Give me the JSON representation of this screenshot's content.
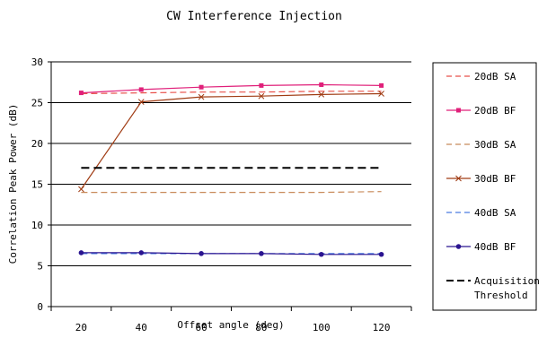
{
  "chart_data": {
    "type": "line",
    "title": "CW Interference Injection",
    "xlabel": "Offset angle (deg)",
    "ylabel": "Correlation Peak Power (dB)",
    "x": [
      20,
      40,
      60,
      80,
      100,
      120
    ],
    "x_ticks": [
      "20",
      "40",
      "60",
      "80",
      "100",
      "120"
    ],
    "ylim": [
      0,
      30
    ],
    "y_ticks": [
      "0",
      "5",
      "10",
      "15",
      "20",
      "25",
      "30"
    ],
    "grid": "horizontal",
    "legend_position": "right",
    "series": [
      {
        "name": "20dB SA",
        "color": "#e8504a",
        "dash": true,
        "marker": "none",
        "values": [
          26.1,
          26.2,
          26.3,
          26.3,
          26.4,
          26.4
        ]
      },
      {
        "name": "20dB BF",
        "color": "#e0207a",
        "dash": false,
        "marker": "square",
        "values": [
          26.2,
          26.6,
          26.9,
          27.1,
          27.2,
          27.1
        ]
      },
      {
        "name": "30dB SA",
        "color": "#c88a5a",
        "dash": true,
        "marker": "none",
        "values": [
          14.0,
          14.0,
          14.0,
          14.0,
          14.0,
          14.1
        ]
      },
      {
        "name": "30dB BF",
        "color": "#a03c14",
        "dash": false,
        "marker": "x",
        "values": [
          14.4,
          25.1,
          25.7,
          25.8,
          26.0,
          26.1
        ]
      },
      {
        "name": "40dB SA",
        "color": "#4a7ae0",
        "dash": true,
        "marker": "none",
        "values": [
          6.5,
          6.5,
          6.5,
          6.5,
          6.5,
          6.5
        ]
      },
      {
        "name": "40dB BF",
        "color": "#2a1490",
        "dash": false,
        "marker": "circle",
        "values": [
          6.6,
          6.6,
          6.5,
          6.5,
          6.4,
          6.4
        ]
      },
      {
        "name": "Acquisition Threshold",
        "legend_lines": [
          "Acquisition",
          "Threshold"
        ],
        "color": "#000000",
        "dash": true,
        "marker": "none",
        "thick": true,
        "values": [
          17,
          17,
          17,
          17,
          17,
          17
        ]
      }
    ]
  }
}
